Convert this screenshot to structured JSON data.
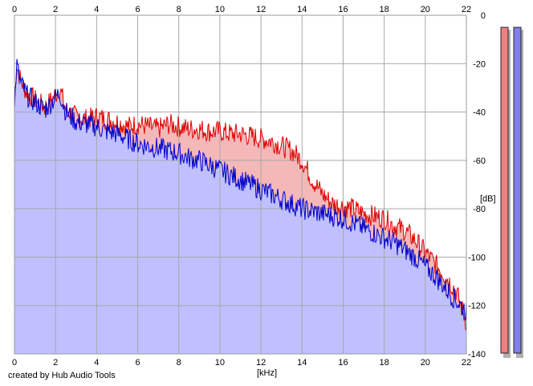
{
  "chart_data": {
    "type": "area",
    "xlabel": "[kHz]",
    "ylabel": "[dB]",
    "xlim": [
      0,
      22
    ],
    "ylim": [
      -140,
      0
    ],
    "x_ticks": [
      "0",
      "2",
      "4",
      "6",
      "8",
      "10",
      "12",
      "14",
      "16",
      "18",
      "20",
      "22"
    ],
    "y_ticks": [
      "0",
      "-20",
      "-40",
      "-60",
      "-80",
      "-100",
      "-120",
      "-140"
    ],
    "grid": true,
    "series": [
      {
        "color": "#dd0000",
        "fill": "#f5b8b8",
        "x": [
          0,
          0.1,
          0.3,
          0.6,
          1.0,
          1.5,
          2.0,
          2.2,
          2.5,
          3.0,
          3.5,
          4.0,
          4.5,
          5.0,
          5.5,
          6.0,
          6.5,
          7.0,
          7.5,
          8.0,
          8.5,
          9.0,
          9.5,
          10.0,
          10.5,
          11.0,
          11.5,
          12.0,
          12.5,
          13.0,
          13.5,
          14.0,
          14.5,
          15.0,
          15.5,
          16.0,
          16.5,
          17.0,
          17.5,
          18.0,
          18.5,
          19.0,
          19.5,
          20.0,
          20.5,
          21.0,
          21.5,
          22.0
        ],
        "y": [
          -38,
          -20,
          -27,
          -32,
          -35,
          -38,
          -33,
          -30,
          -39,
          -42,
          -43,
          -42,
          -43,
          -44,
          -46,
          -45,
          -46,
          -47,
          -45,
          -46,
          -47,
          -47,
          -48,
          -48,
          -49,
          -49,
          -50,
          -51,
          -52,
          -54,
          -56,
          -60,
          -68,
          -74,
          -78,
          -79,
          -80,
          -82,
          -83,
          -84,
          -87,
          -89,
          -93,
          -98,
          -103,
          -108,
          -114,
          -127
        ]
      },
      {
        "color": "#0000cc",
        "fill": "#c0c0ff",
        "x": [
          0,
          0.1,
          0.3,
          0.6,
          1.0,
          1.5,
          2.0,
          2.2,
          2.5,
          3.0,
          3.5,
          4.0,
          4.5,
          5.0,
          5.5,
          6.0,
          6.5,
          7.0,
          7.5,
          8.0,
          8.5,
          9.0,
          9.5,
          10.0,
          10.5,
          11.0,
          11.5,
          12.0,
          12.5,
          13.0,
          13.5,
          14.0,
          14.5,
          15.0,
          15.5,
          16.0,
          16.5,
          17.0,
          17.5,
          18.0,
          18.5,
          19.0,
          19.5,
          20.0,
          20.5,
          21.0,
          21.5,
          22.0
        ],
        "y": [
          -40,
          -20,
          -28,
          -33,
          -36,
          -39,
          -34,
          -32,
          -40,
          -44,
          -45,
          -46,
          -48,
          -49,
          -51,
          -53,
          -54,
          -55,
          -56,
          -57,
          -59,
          -60,
          -62,
          -64,
          -66,
          -68,
          -70,
          -72,
          -74,
          -76,
          -78,
          -80,
          -81,
          -82,
          -83,
          -84,
          -86,
          -88,
          -90,
          -92,
          -94,
          -97,
          -100,
          -104,
          -108,
          -113,
          -118,
          -122
        ]
      }
    ]
  },
  "meters": [
    {
      "color": "#f08080",
      "level": -5
    },
    {
      "color": "#8080f0",
      "level": -5
    }
  ],
  "credit": "created by Hub Audio Tools"
}
